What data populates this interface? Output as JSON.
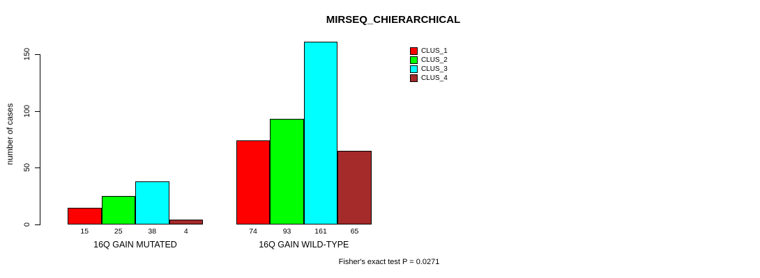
{
  "chart_data": {
    "type": "bar",
    "title": "MIRSEQ_CHIERARCHICAL",
    "ylabel": "number of cases",
    "xlabel": "",
    "yticks": [
      0,
      50,
      100,
      150
    ],
    "ylim": [
      0,
      165
    ],
    "grid": false,
    "legend_position": "top-right",
    "categories": [
      "16Q GAIN MUTATED",
      "16Q GAIN WILD-TYPE"
    ],
    "series": [
      {
        "name": "CLUS_1",
        "color": "#FF0000",
        "values": [
          15,
          74
        ]
      },
      {
        "name": "CLUS_2",
        "color": "#00FF00",
        "values": [
          25,
          93
        ]
      },
      {
        "name": "CLUS_3",
        "color": "#00FFFF",
        "values": [
          38,
          161
        ]
      },
      {
        "name": "CLUS_4",
        "color": "#A52A2A",
        "values": [
          4,
          65
        ]
      }
    ],
    "show_bar_values": true,
    "annotation": "Fisher's exact test P = 0.0271"
  },
  "colors": {
    "background": "#FFFFFF",
    "axis": "#000000",
    "text": "#000000",
    "bar_border": "#000000"
  }
}
